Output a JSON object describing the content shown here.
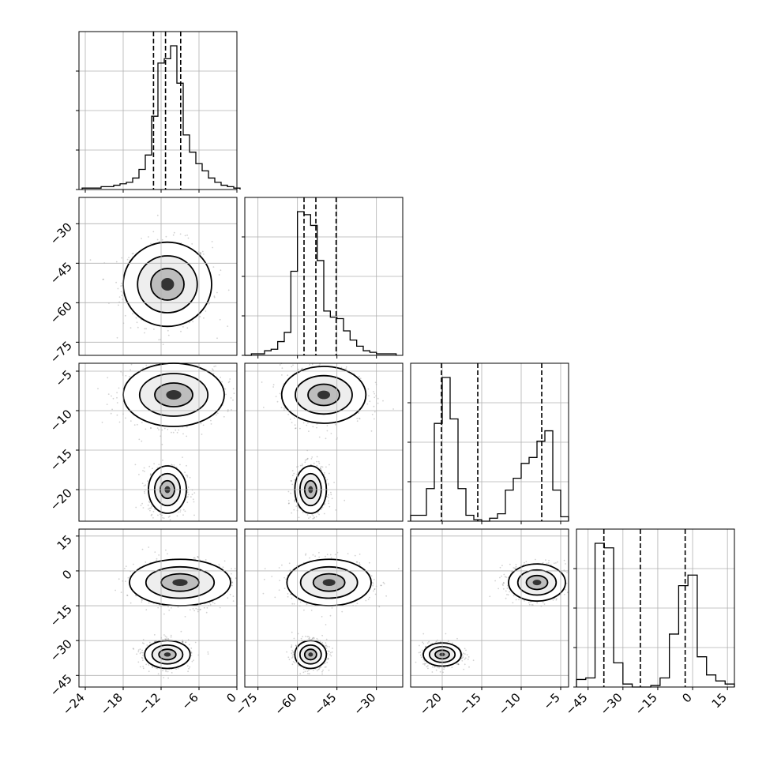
{
  "chart_data": {
    "type": "corner",
    "grid": true,
    "parameters": [
      {
        "range": [
          -25,
          0
        ],
        "ticks": [
          -24,
          -18,
          -12,
          -6,
          0
        ],
        "tick_labels": [
          "−24",
          "−18",
          "−12",
          "−6",
          "0"
        ],
        "quantiles": [
          -13.2,
          -11.3,
          -8.9
        ]
      },
      {
        "range": [
          -80,
          -20
        ],
        "ticks": [
          -75,
          -60,
          -45,
          -30
        ],
        "tick_labels": [
          "−75",
          "−60",
          "−45",
          "−30"
        ],
        "quantiles": [
          -57.5,
          -53.0,
          -45.3
        ]
      },
      {
        "range": [
          -24,
          -4
        ],
        "ticks": [
          -20,
          -15,
          -10,
          -5
        ],
        "tick_labels": [
          "−20",
          "−15",
          "−10",
          "−5"
        ],
        "quantiles": [
          -20.1,
          -15.5,
          -7.4
        ]
      },
      {
        "range": [
          -50,
          18
        ],
        "ticks": [
          -45,
          -30,
          -15,
          0,
          15
        ],
        "tick_labels": [
          "−45",
          "−30",
          "−15",
          "0",
          "15"
        ],
        "quantiles": [
          -38.2,
          -22.5,
          -3.2
        ]
      }
    ],
    "histograms": [
      {
        "bins": [
          -24.5,
          -23.5,
          -22.5,
          -21.5,
          -20.5,
          -19.5,
          -18.5,
          -17.5,
          -16.5,
          -15.5,
          -14.5,
          -13.5,
          -12.5,
          -11.5,
          -10.5,
          -9.5,
          -8.5,
          -7.5,
          -6.5,
          -5.5,
          -4.5,
          -3.5,
          -2.5,
          -1.5,
          -0.5
        ],
        "counts": [
          0.01,
          0.01,
          0.01,
          0.02,
          0.02,
          0.03,
          0.04,
          0.05,
          0.08,
          0.14,
          0.24,
          0.51,
          0.88,
          0.91,
          1.0,
          0.74,
          0.38,
          0.26,
          0.18,
          0.13,
          0.08,
          0.05,
          0.03,
          0.02,
          0.01
        ]
      },
      {
        "bins": [
          -80,
          -77.5,
          -75,
          -72.5,
          -70,
          -67.5,
          -65,
          -62.5,
          -60,
          -57.5,
          -55,
          -52.5,
          -50,
          -47.5,
          -45,
          -42.5,
          -40,
          -37.5,
          -35,
          -32.5,
          -30,
          -27.5,
          -25,
          -22.5
        ],
        "counts": [
          0.0,
          0.01,
          0.01,
          0.03,
          0.04,
          0.09,
          0.15,
          0.55,
          0.94,
          0.92,
          0.85,
          0.62,
          0.29,
          0.25,
          0.24,
          0.16,
          0.1,
          0.06,
          0.03,
          0.02,
          0.01,
          0.01,
          0.01
        ],
        "edges_note": ""
      },
      {
        "bins": [
          -24,
          -23,
          -22,
          -21,
          -20,
          -19,
          -18,
          -17,
          -16,
          -15,
          -14,
          -13,
          -12,
          -11,
          -10,
          -9,
          -8,
          -7,
          -6,
          -5,
          -4
        ],
        "counts": [
          0.04,
          0.04,
          0.22,
          0.66,
          0.97,
          0.69,
          0.22,
          0.04,
          0.01,
          0.0,
          0.02,
          0.05,
          0.21,
          0.29,
          0.39,
          0.43,
          0.54,
          0.61,
          0.21,
          0.03
        ]
      },
      {
        "bins": [
          -50,
          -46,
          -42,
          -38,
          -34,
          -30,
          -26,
          -22,
          -18,
          -14,
          -10,
          -6,
          -2,
          2,
          6,
          10,
          14,
          18
        ],
        "counts": [
          0.05,
          0.06,
          0.95,
          0.92,
          0.16,
          0.02,
          0.0,
          0.0,
          0.01,
          0.06,
          0.35,
          0.67,
          0.74,
          0.2,
          0.08,
          0.04,
          0.02
        ]
      }
    ],
    "blobs": [
      {
        "row": 1,
        "col": 0,
        "center": [
          -11,
          -53
        ],
        "spread": [
          3.5,
          8
        ]
      },
      {
        "row": 2,
        "col": 0,
        "center": [
          -10,
          -8
        ],
        "spread": [
          4,
          2
        ]
      },
      {
        "row": 2,
        "col": 0,
        "center": [
          -11,
          -20
        ],
        "spread": [
          1.5,
          1.5
        ]
      },
      {
        "row": 2,
        "col": 1,
        "center": [
          -50,
          -8
        ],
        "spread": [
          8,
          1.8
        ]
      },
      {
        "row": 2,
        "col": 1,
        "center": [
          -55,
          -20
        ],
        "spread": [
          3,
          1.5
        ]
      },
      {
        "row": 3,
        "col": 0,
        "center": [
          -9,
          -5
        ],
        "spread": [
          4,
          5
        ]
      },
      {
        "row": 3,
        "col": 0,
        "center": [
          -11,
          -36
        ],
        "spread": [
          1.8,
          3
        ]
      },
      {
        "row": 3,
        "col": 1,
        "center": [
          -48,
          -5
        ],
        "spread": [
          8,
          5
        ]
      },
      {
        "row": 3,
        "col": 1,
        "center": [
          -55,
          -36
        ],
        "spread": [
          3,
          3
        ]
      },
      {
        "row": 3,
        "col": 2,
        "center": [
          -8,
          -5
        ],
        "spread": [
          1.8,
          4
        ]
      },
      {
        "row": 3,
        "col": 2,
        "center": [
          -20,
          -36
        ],
        "spread": [
          1.2,
          2.5
        ]
      }
    ]
  }
}
